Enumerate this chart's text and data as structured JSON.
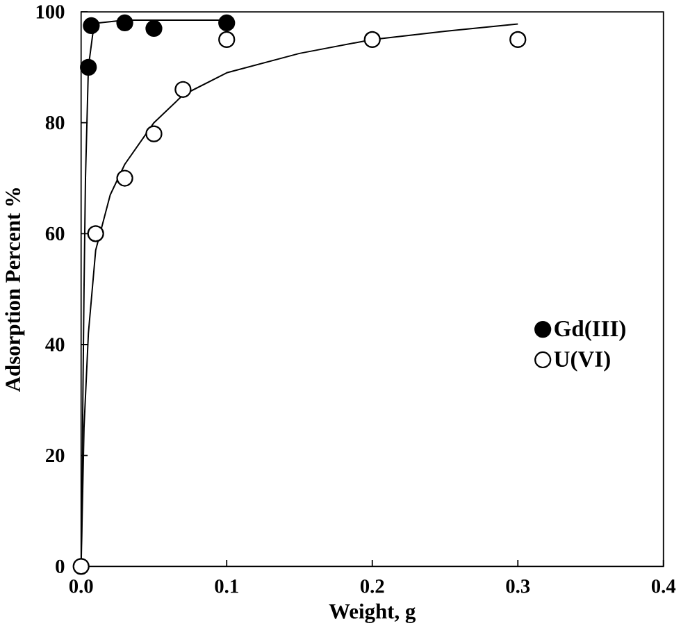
{
  "chart_data": {
    "type": "scatter",
    "xlabel": "Weight, g",
    "ylabel": "Adsorption Percent %",
    "xlim": [
      0,
      0.4
    ],
    "ylim": [
      0,
      100
    ],
    "xticks": [
      {
        "value": 0,
        "label": "0.0"
      },
      0.1,
      0.2,
      0.3,
      0.4
    ],
    "yticks": [
      0,
      20,
      40,
      60,
      80,
      100
    ],
    "legend": "right",
    "grid": false,
    "series": [
      {
        "name": "Gd(III)",
        "marker": "circle",
        "color": "#000000",
        "x": [
          0.005,
          0.007,
          0.03,
          0.05,
          0.1
        ],
        "values": [
          90,
          97.5,
          98,
          97,
          98
        ]
      },
      {
        "name": "U(VI)",
        "marker": "circle",
        "color": "#ffffff",
        "x": [
          0,
          0.01,
          0.03,
          0.05,
          0.07,
          0.1,
          0.2,
          0.3
        ],
        "values": [
          0,
          60,
          70,
          78,
          86,
          95,
          95,
          95
        ]
      },
      {
        "type": "line",
        "marker": "none",
        "color": "#000000",
        "x": [
          0,
          0.002,
          0.003,
          0.005,
          0.008,
          0.012,
          0.03,
          0.1
        ],
        "values": [
          0,
          50,
          70,
          90,
          96,
          98,
          98.5,
          98.5
        ]
      },
      {
        "type": "line",
        "marker": "none",
        "color": "#000000",
        "x": [
          0,
          0.002,
          0.005,
          0.01,
          0.02,
          0.03,
          0.05,
          0.07,
          0.1,
          0.15,
          0.2,
          0.25,
          0.3
        ],
        "values": [
          0,
          25,
          42,
          57,
          67,
          72.5,
          80,
          85,
          89,
          92.5,
          95,
          96.5,
          97.8
        ]
      }
    ]
  }
}
